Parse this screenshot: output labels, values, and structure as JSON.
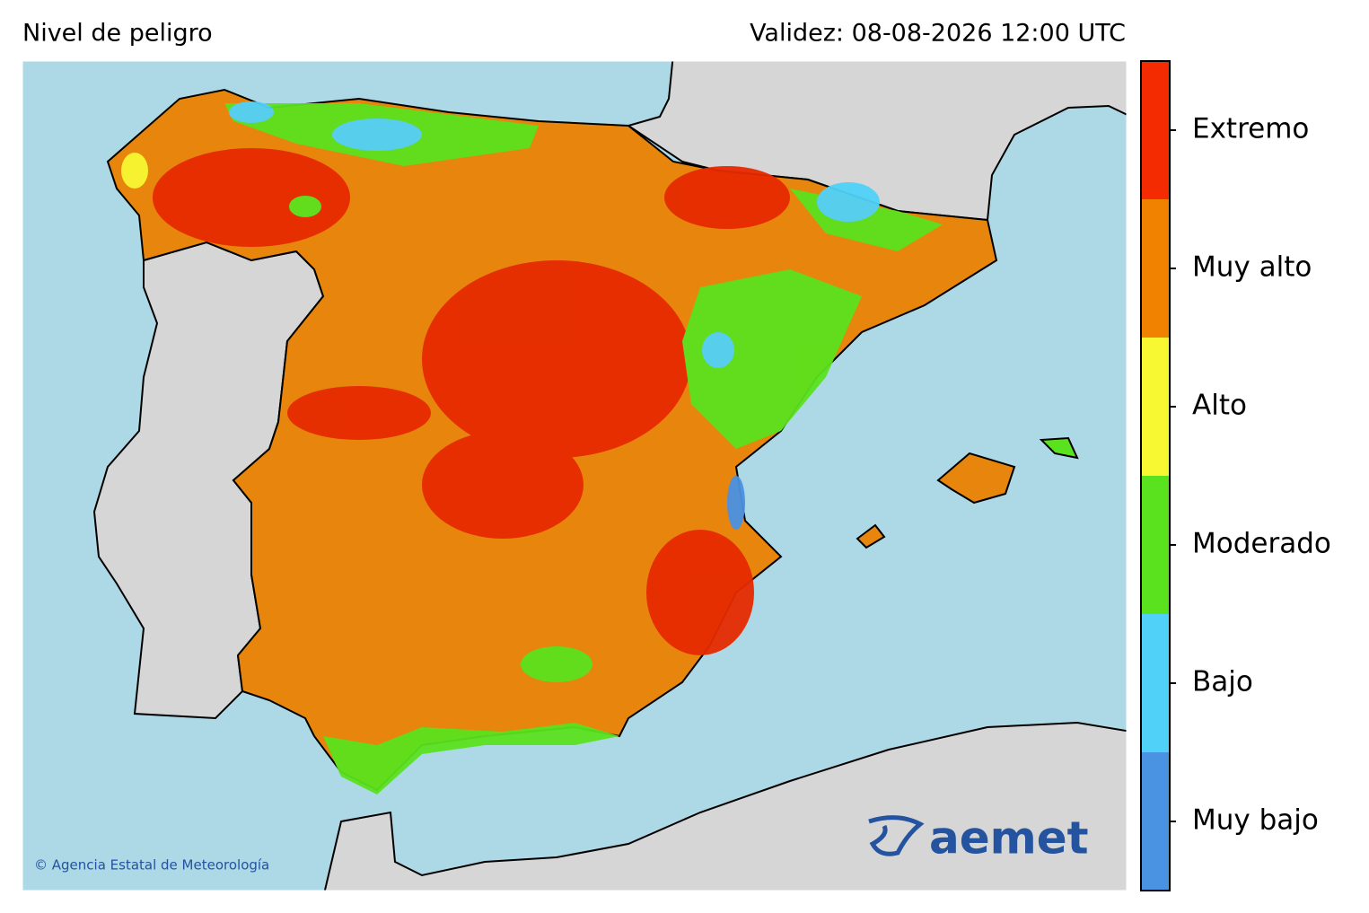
{
  "header": {
    "title": "Nivel de peligro",
    "validity": "Validez: 08-08-2026 12:00 UTC"
  },
  "legend": {
    "levels": [
      {
        "label": "Extremo",
        "color": "#f42a00"
      },
      {
        "label": "Muy alto",
        "color": "#f08200"
      },
      {
        "label": "Alto",
        "color": "#f8f832"
      },
      {
        "label": "Moderado",
        "color": "#5ae21e"
      },
      {
        "label": "Bajo",
        "color": "#50d2f8"
      },
      {
        "label": "Muy bajo",
        "color": "#4a92e2"
      }
    ]
  },
  "credit": "© Agencia Estatal de Meteorología",
  "logo": "aemet"
}
